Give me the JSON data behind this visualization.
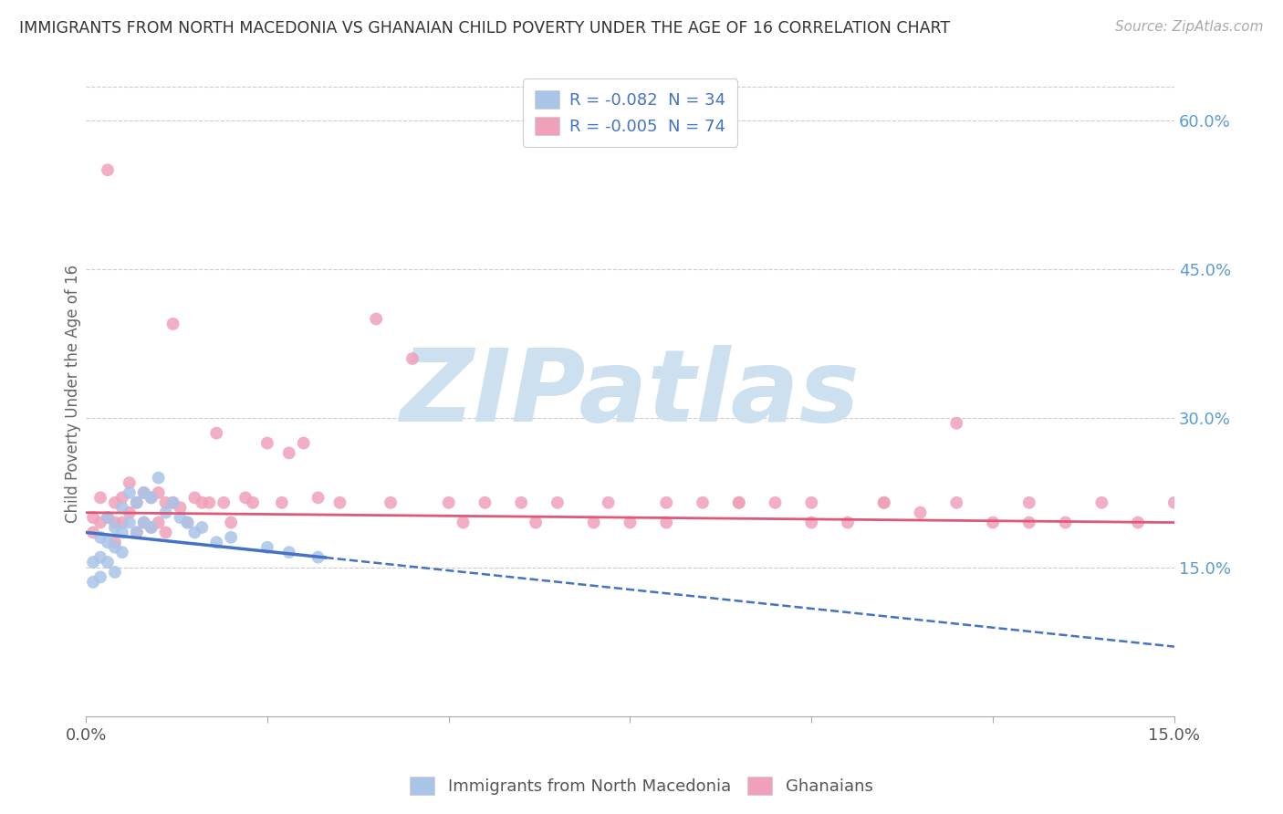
{
  "title": "IMMIGRANTS FROM NORTH MACEDONIA VS GHANAIAN CHILD POVERTY UNDER THE AGE OF 16 CORRELATION CHART",
  "source": "Source: ZipAtlas.com",
  "ylabel": "Child Poverty Under the Age of 16",
  "right_yticks": [
    "15.0%",
    "30.0%",
    "45.0%",
    "60.0%"
  ],
  "right_ytick_vals": [
    0.15,
    0.3,
    0.45,
    0.6
  ],
  "xmin": 0.0,
  "xmax": 0.15,
  "ymin": 0.0,
  "ymax": 0.65,
  "legend_r1": "R = -0.082  N = 34",
  "legend_r2": "R = -0.005  N = 74",
  "blue_color": "#aac4e8",
  "pink_color": "#f0a0b8",
  "trend_blue_color": "#4472c4",
  "trend_pink_color": "#e05878",
  "axis_color": "#5b9bd5",
  "legend_text_color": "#4472c4",
  "watermark_color": "#cce0f0",
  "watermark_text": "ZIPatlas",
  "blue_scatter_x": [
    0.001,
    0.001,
    0.002,
    0.002,
    0.002,
    0.003,
    0.003,
    0.003,
    0.004,
    0.004,
    0.004,
    0.005,
    0.005,
    0.005,
    0.006,
    0.006,
    0.007,
    0.007,
    0.008,
    0.008,
    0.009,
    0.009,
    0.01,
    0.011,
    0.012,
    0.013,
    0.014,
    0.015,
    0.016,
    0.018,
    0.02,
    0.025,
    0.028,
    0.032
  ],
  "blue_scatter_y": [
    0.155,
    0.135,
    0.18,
    0.16,
    0.14,
    0.2,
    0.175,
    0.155,
    0.19,
    0.17,
    0.145,
    0.21,
    0.185,
    0.165,
    0.225,
    0.195,
    0.215,
    0.185,
    0.225,
    0.195,
    0.22,
    0.19,
    0.24,
    0.205,
    0.215,
    0.2,
    0.195,
    0.185,
    0.19,
    0.175,
    0.18,
    0.17,
    0.165,
    0.16
  ],
  "pink_scatter_x": [
    0.001,
    0.001,
    0.002,
    0.002,
    0.003,
    0.003,
    0.004,
    0.004,
    0.004,
    0.005,
    0.005,
    0.006,
    0.006,
    0.007,
    0.007,
    0.008,
    0.008,
    0.009,
    0.009,
    0.01,
    0.01,
    0.011,
    0.011,
    0.012,
    0.012,
    0.013,
    0.014,
    0.015,
    0.016,
    0.017,
    0.018,
    0.019,
    0.02,
    0.022,
    0.023,
    0.025,
    0.027,
    0.028,
    0.03,
    0.032,
    0.035,
    0.04,
    0.042,
    0.045,
    0.05,
    0.052,
    0.055,
    0.06,
    0.062,
    0.065,
    0.07,
    0.072,
    0.075,
    0.08,
    0.085,
    0.09,
    0.095,
    0.1,
    0.105,
    0.11,
    0.115,
    0.12,
    0.125,
    0.13,
    0.135,
    0.14,
    0.145,
    0.15,
    0.12,
    0.08,
    0.09,
    0.1,
    0.11,
    0.13
  ],
  "pink_scatter_y": [
    0.2,
    0.185,
    0.22,
    0.195,
    0.55,
    0.2,
    0.215,
    0.195,
    0.175,
    0.22,
    0.195,
    0.235,
    0.205,
    0.215,
    0.185,
    0.225,
    0.195,
    0.22,
    0.19,
    0.225,
    0.195,
    0.215,
    0.185,
    0.395,
    0.215,
    0.21,
    0.195,
    0.22,
    0.215,
    0.215,
    0.285,
    0.215,
    0.195,
    0.22,
    0.215,
    0.275,
    0.215,
    0.265,
    0.275,
    0.22,
    0.215,
    0.4,
    0.215,
    0.36,
    0.215,
    0.195,
    0.215,
    0.215,
    0.195,
    0.215,
    0.195,
    0.215,
    0.195,
    0.215,
    0.215,
    0.215,
    0.215,
    0.215,
    0.195,
    0.215,
    0.205,
    0.215,
    0.195,
    0.215,
    0.195,
    0.215,
    0.195,
    0.215,
    0.295,
    0.195,
    0.215,
    0.195,
    0.215,
    0.195
  ],
  "blue_trend_x0": 0.0,
  "blue_trend_x1": 0.15,
  "blue_trend_y0": 0.185,
  "blue_trend_y1": 0.07,
  "blue_trend_solid_x1": 0.033,
  "pink_trend_x0": 0.0,
  "pink_trend_x1": 0.15,
  "pink_trend_y0": 0.205,
  "pink_trend_y1": 0.195
}
